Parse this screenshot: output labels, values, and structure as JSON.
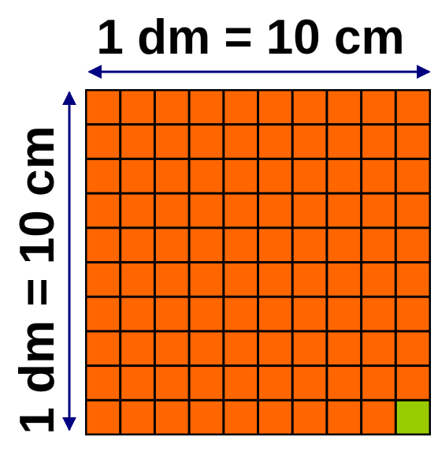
{
  "top_label": "1 dm = 10 cm",
  "side_label": "1 dm = 10 cm",
  "grid": {
    "rows": 10,
    "cols": 10,
    "cell_color": "#ff6600",
    "highlight_color": "#99cc00",
    "line_color": "#000000",
    "highlight_cell": {
      "row": 10,
      "col": 10
    }
  },
  "arrow_color": "#000080"
}
